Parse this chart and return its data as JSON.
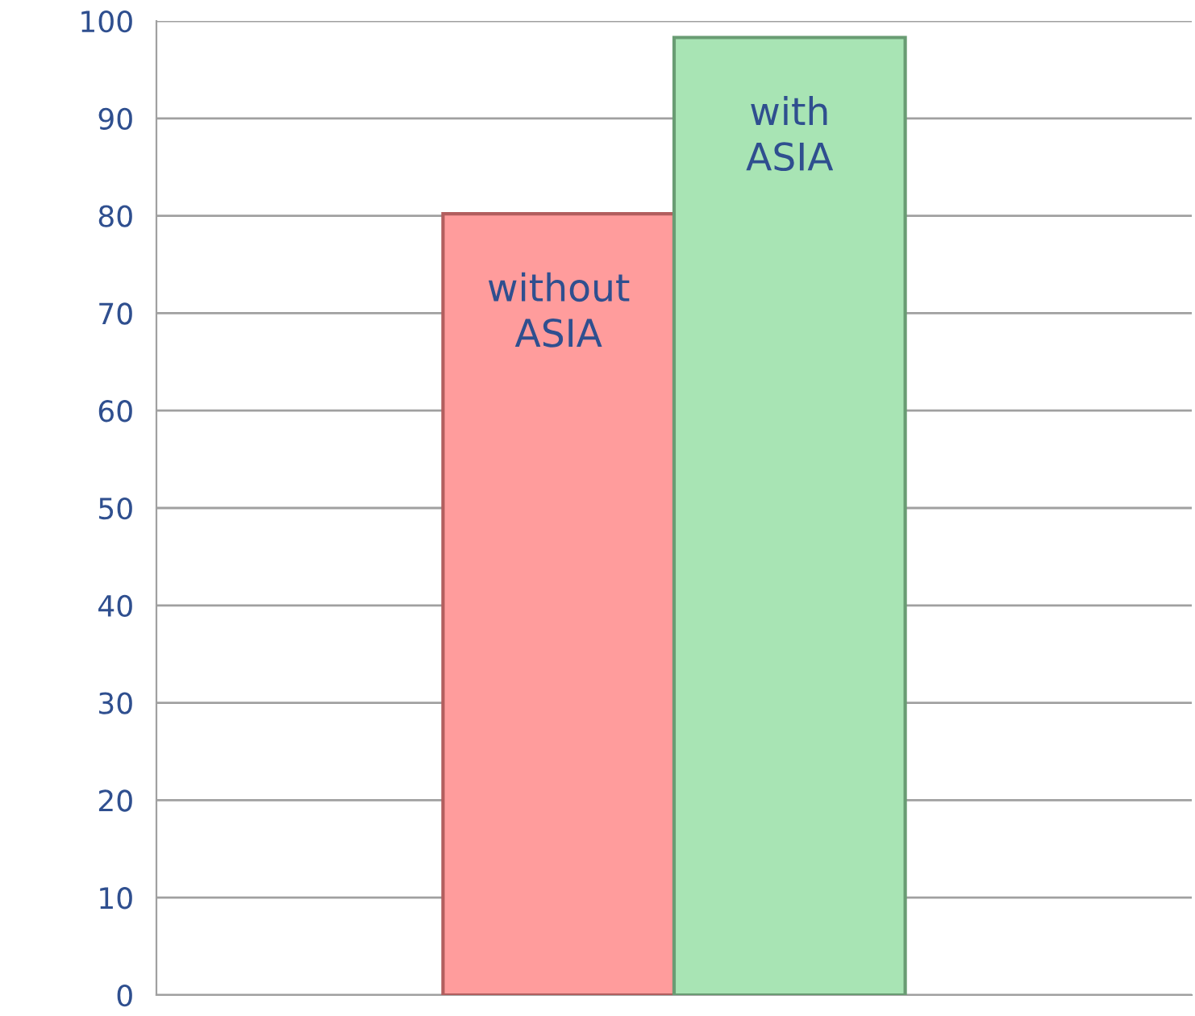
{
  "chart_data": {
    "type": "bar",
    "categories": [
      "without\nASIA",
      "with\nASIA"
    ],
    "values": [
      80.2,
      98.3
    ],
    "colors": [
      "#ff9c9c",
      "#a8e4b4"
    ],
    "ylim": [
      0,
      100
    ],
    "yticks": [
      0,
      10,
      20,
      30,
      40,
      50,
      60,
      70,
      80,
      90,
      100
    ],
    "grid": "y"
  }
}
